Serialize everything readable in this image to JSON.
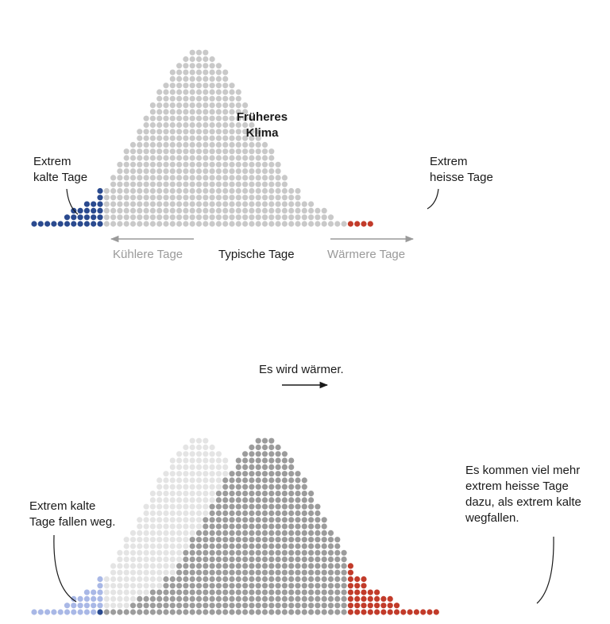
{
  "top_chart": {
    "label_center": "Früheres\nKlima",
    "label_cold": "Extrem\nkalte Tage",
    "label_hot": "Extrem\nheisse Tage",
    "axis_cooler": "Kühlere Tage",
    "axis_typical": "Typische Tage",
    "axis_warmer": "Wärmere Tage",
    "column_heights": [
      1,
      1,
      1,
      1,
      1,
      2,
      3,
      3,
      4,
      4,
      6,
      6,
      8,
      10,
      12,
      13,
      15,
      17,
      19,
      21,
      22,
      24,
      25,
      26,
      27,
      27,
      27,
      26,
      25,
      24,
      22,
      21,
      19,
      17,
      15,
      13,
      12,
      10,
      8,
      6,
      6,
      4,
      4,
      3,
      3,
      2,
      1,
      1,
      1,
      1,
      1,
      1
    ],
    "cold_columns": 11,
    "hot_start_column": 48
  },
  "bottom_chart": {
    "label_shift": "Es wird wärmer.",
    "label_cold_drop": "Extrem kalte\nTage fallen weg.",
    "label_hot_more": "Es kommen viel mehr\nextrem heisse Tage\ndazu, als extrem kalte\nwegfallen.",
    "old_heights": [
      1,
      1,
      1,
      1,
      1,
      2,
      3,
      3,
      4,
      4,
      6,
      6,
      8,
      10,
      12,
      13,
      15,
      17,
      19,
      21,
      22,
      24,
      25,
      26,
      27,
      27,
      27,
      26,
      25,
      24,
      22,
      21,
      19,
      17,
      15,
      13,
      12,
      10,
      8,
      6,
      6,
      4,
      4,
      3,
      3,
      2,
      1,
      1,
      1,
      1,
      1,
      1
    ],
    "shift_columns": 10,
    "hot_threshold_column": 48
  },
  "colors": {
    "neutral": "#c9c9c9",
    "dark_neutral": "#9c9c9c",
    "faded": "#e4e4e4",
    "cold": "#2a4a8f",
    "cold_faded": "#a9b8e6",
    "hot": "#c23b2a",
    "hot_faded": "#eeb3ab",
    "arrow_grey": "#9a9a9a",
    "arrow_dark": "#1a1a1a"
  }
}
